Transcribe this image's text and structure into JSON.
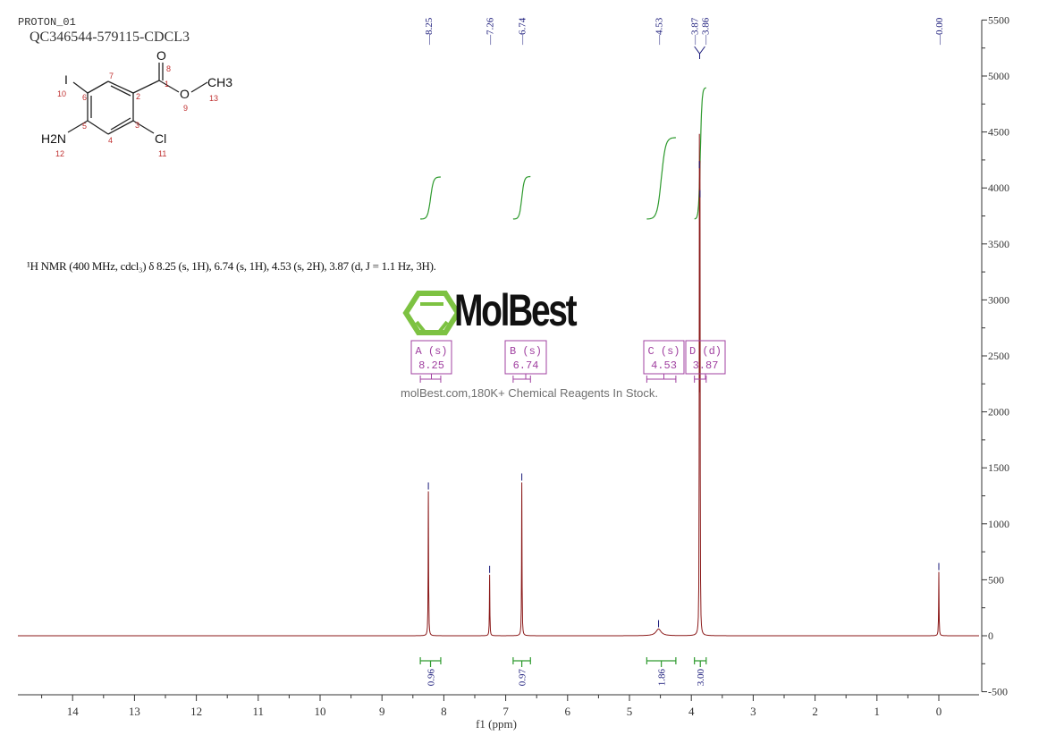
{
  "header": {
    "experiment": "PROTON_01",
    "sample": "QC346544-579115-CDCL3"
  },
  "structure": {
    "atoms": [
      "O",
      "O",
      "CH3",
      "I",
      "H2N",
      "Cl"
    ],
    "numbers": [
      "1",
      "2",
      "3",
      "4",
      "5",
      "6",
      "7",
      "8",
      "9",
      "10",
      "11",
      "12",
      "13"
    ]
  },
  "description": "¹H NMR (400 MHz, cdcl₃) δ 8.25 (s, 1H), 6.74 (s, 1H), 4.53 (s, 2H), 3.87 (d, J = 1.1 Hz, 3H).",
  "watermark": {
    "brand": "MolBest",
    "tagline": "molBest.com,180K+ Chemical Reagents In Stock."
  },
  "chart_data": {
    "type": "line",
    "xlabel": "f1 (ppm)",
    "xlim": [
      14.88,
      -0.6
    ],
    "ylim": [
      -500,
      5500
    ],
    "x_ticks": [
      14,
      13,
      12,
      11,
      10,
      9,
      8,
      7,
      6,
      5,
      4,
      3,
      2,
      1,
      0
    ],
    "y_ticks": [
      -500,
      0,
      500,
      1000,
      1500,
      2000,
      2500,
      3000,
      3500,
      4000,
      4500,
      5000,
      5500
    ],
    "y_axis_side": "right",
    "colors": {
      "spectrum": "#8b1a1a",
      "integral": "#2e9a2e",
      "peak_label": "#1a1a7a",
      "multiplet": "#a040a0"
    },
    "peaks": [
      {
        "ppm": 8.25,
        "intensity": 1290,
        "width": 0.004
      },
      {
        "ppm": 7.26,
        "intensity": 545,
        "width": 0.004
      },
      {
        "ppm": 6.74,
        "intensity": 1370,
        "width": 0.004
      },
      {
        "ppm": 4.53,
        "intensity": 60,
        "width": 0.05
      },
      {
        "ppm": 3.87,
        "intensity": 4160,
        "width": 0.003
      },
      {
        "ppm": 3.86,
        "intensity": 3900,
        "width": 0.003
      },
      {
        "ppm": 0.0,
        "intensity": 570,
        "width": 0.004
      }
    ],
    "peak_labels": [
      "8.25",
      "7.26",
      "6.74",
      "4.53",
      "3.87",
      "3.86",
      "-0.00"
    ],
    "integrals": [
      {
        "from": 8.38,
        "to": 8.05,
        "value": "0.96"
      },
      {
        "from": 6.88,
        "to": 6.6,
        "value": "0.97"
      },
      {
        "from": 4.72,
        "to": 4.25,
        "value": "1.86"
      },
      {
        "from": 3.95,
        "to": 3.76,
        "value": "3.00"
      }
    ],
    "multiplets": [
      {
        "name": "A (s)",
        "shift": "8.25"
      },
      {
        "name": "B (s)",
        "shift": "6.74"
      },
      {
        "name": "C (s)",
        "shift": "4.53"
      },
      {
        "name": "D (d)",
        "shift": "3.87"
      }
    ]
  }
}
